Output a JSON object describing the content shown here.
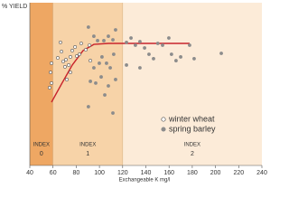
{
  "chart_data": {
    "type": "scatter",
    "y_label": "% YIELD",
    "x_label": "Exchangeable K mg/l",
    "xlim": [
      40,
      240
    ],
    "ylim": [
      0,
      100
    ],
    "xticks": [
      40,
      60,
      80,
      100,
      120,
      140,
      160,
      180,
      200,
      220,
      240
    ],
    "zones": [
      {
        "label": "INDEX",
        "sublabel": "0",
        "x": [
          40,
          60
        ],
        "color": "#eea763"
      },
      {
        "label": "INDEX",
        "sublabel": "1",
        "x": [
          60,
          120
        ],
        "color": "#f7d3a8"
      },
      {
        "label": "INDEX",
        "sublabel": "2",
        "x": [
          120,
          240
        ],
        "color": "#fcebd8"
      }
    ],
    "curve": {
      "color": "#c8242c",
      "x": [
        58.7,
        67.3,
        76.6,
        85.9,
        95.2,
        107.7,
        177.7
      ],
      "y": [
        38.9,
        50,
        61.7,
        70.6,
        74.4,
        75,
        75
      ]
    },
    "series": [
      {
        "name": "winter wheat",
        "color": "#ffffff",
        "stroke": "#555555",
        "x": [
          57.1,
          58.7,
          57.9,
          58.7,
          64.1,
          66.4,
          67.3,
          68.8,
          71.1,
          70.3,
          73.5,
          75,
          76.6,
          79,
          80.5,
          75,
          71.9,
          82.8,
          84.3,
          88.2,
          91.4,
          92.2
        ],
        "y": [
          47.8,
          50.6,
          57.2,
          62.8,
          66.1,
          75.6,
          70,
          63.9,
          65,
          60.6,
          61.7,
          66.7,
          70.6,
          72.8,
          67.2,
          57.2,
          52.8,
          68.3,
          75,
          71.1,
          73.9,
          64.4
        ]
      },
      {
        "name": "spring barley",
        "color": "#8c8c8c",
        "stroke": "#8c8c8c",
        "x": [
          90.5,
          95.2,
          98.4,
          103.8,
          107.7,
          111.6,
          113.9,
          102.2,
          106.1,
          109.3,
          112.3,
          99.9,
          95.2,
          92.2,
          96.8,
          101.5,
          107.7,
          113.9,
          90.5,
          111.6,
          104.6,
          123.3,
          127.2,
          131,
          134.9,
          138.9,
          142.7,
          146.6,
          154.4,
          159.8,
          162.1,
          166,
          170,
          177.7,
          181.6,
          205,
          123.3,
          134.9,
          150.3
        ],
        "y": [
          85,
          79.4,
          76.7,
          76.7,
          79.4,
          77.2,
          83.3,
          66.7,
          62.8,
          60,
          68.3,
          62.8,
          60,
          51.7,
          50.6,
          54.4,
          48.9,
          52.8,
          36.1,
          32.2,
          43.3,
          75.6,
          78.3,
          73.9,
          76.1,
          72.2,
          68.3,
          65.6,
          73.9,
          78.3,
          68.3,
          64.4,
          66.7,
          73.9,
          65.6,
          68.9,
          61.7,
          60,
          75
        ]
      }
    ]
  }
}
